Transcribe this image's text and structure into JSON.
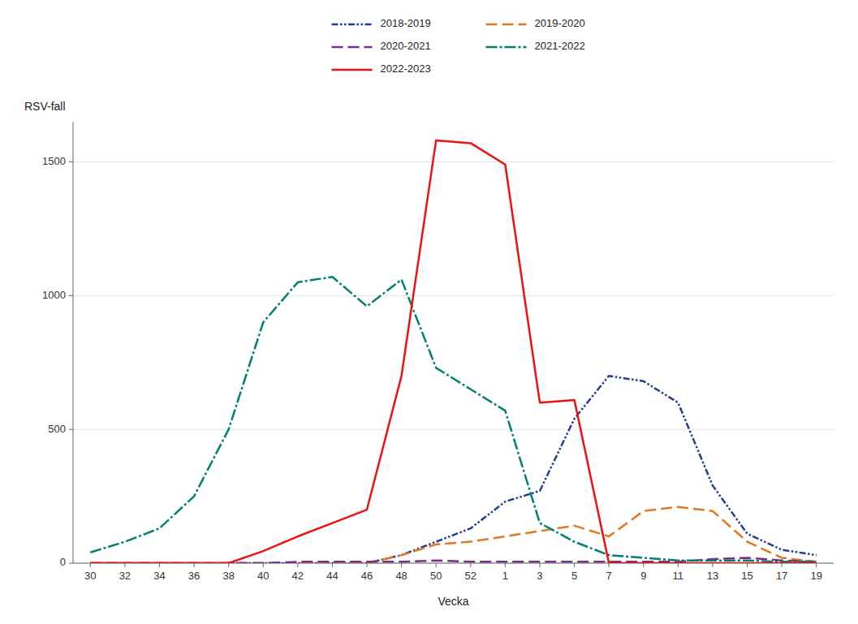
{
  "chart_data": {
    "type": "line",
    "x_label": "Vecka",
    "y_label": "RSV-fall",
    "categories": [
      "30",
      "32",
      "34",
      "36",
      "38",
      "40",
      "42",
      "44",
      "46",
      "48",
      "50",
      "52",
      "1",
      "3",
      "5",
      "7",
      "9",
      "11",
      "13",
      "15",
      "17",
      "19"
    ],
    "series": [
      {
        "name": "2018-2019",
        "color": "#1f3d99",
        "line_style": "dashdotdot",
        "values": [
          0,
          0,
          0,
          0,
          0,
          0,
          0,
          0,
          0,
          30,
          80,
          130,
          230,
          270,
          540,
          700,
          680,
          600,
          290,
          110,
          50,
          30
        ]
      },
      {
        "name": "2019-2020",
        "color": "#e07820",
        "line_style": "dashed",
        "values": [
          0,
          0,
          0,
          0,
          0,
          0,
          0,
          0,
          0,
          30,
          70,
          80,
          100,
          120,
          140,
          100,
          195,
          210,
          195,
          80,
          20,
          5
        ]
      },
      {
        "name": "2020-2021",
        "color": "#7b2d8b",
        "line_style": "dashed",
        "values": [
          0,
          0,
          0,
          0,
          0,
          0,
          5,
          5,
          5,
          5,
          10,
          5,
          5,
          5,
          5,
          5,
          5,
          5,
          15,
          20,
          10,
          5
        ]
      },
      {
        "name": "2021-2022",
        "color": "#008070",
        "line_style": "dashdot",
        "values": [
          40,
          80,
          130,
          250,
          500,
          900,
          1050,
          1070,
          960,
          1060,
          730,
          650,
          570,
          150,
          80,
          30,
          20,
          10,
          10,
          10,
          5,
          5
        ]
      },
      {
        "name": "2022-2023",
        "color": "#ee1111",
        "line_style": "solid",
        "values": [
          0,
          0,
          0,
          0,
          0,
          45,
          100,
          150,
          200,
          700,
          1580,
          1570,
          1490,
          600,
          610,
          0,
          0,
          0,
          0,
          0,
          0,
          0
        ]
      }
    ],
    "ylim": [
      0,
      1650
    ],
    "yticks": [
      0,
      500,
      1000,
      1500
    ],
    "grid": true,
    "legend": "top"
  }
}
